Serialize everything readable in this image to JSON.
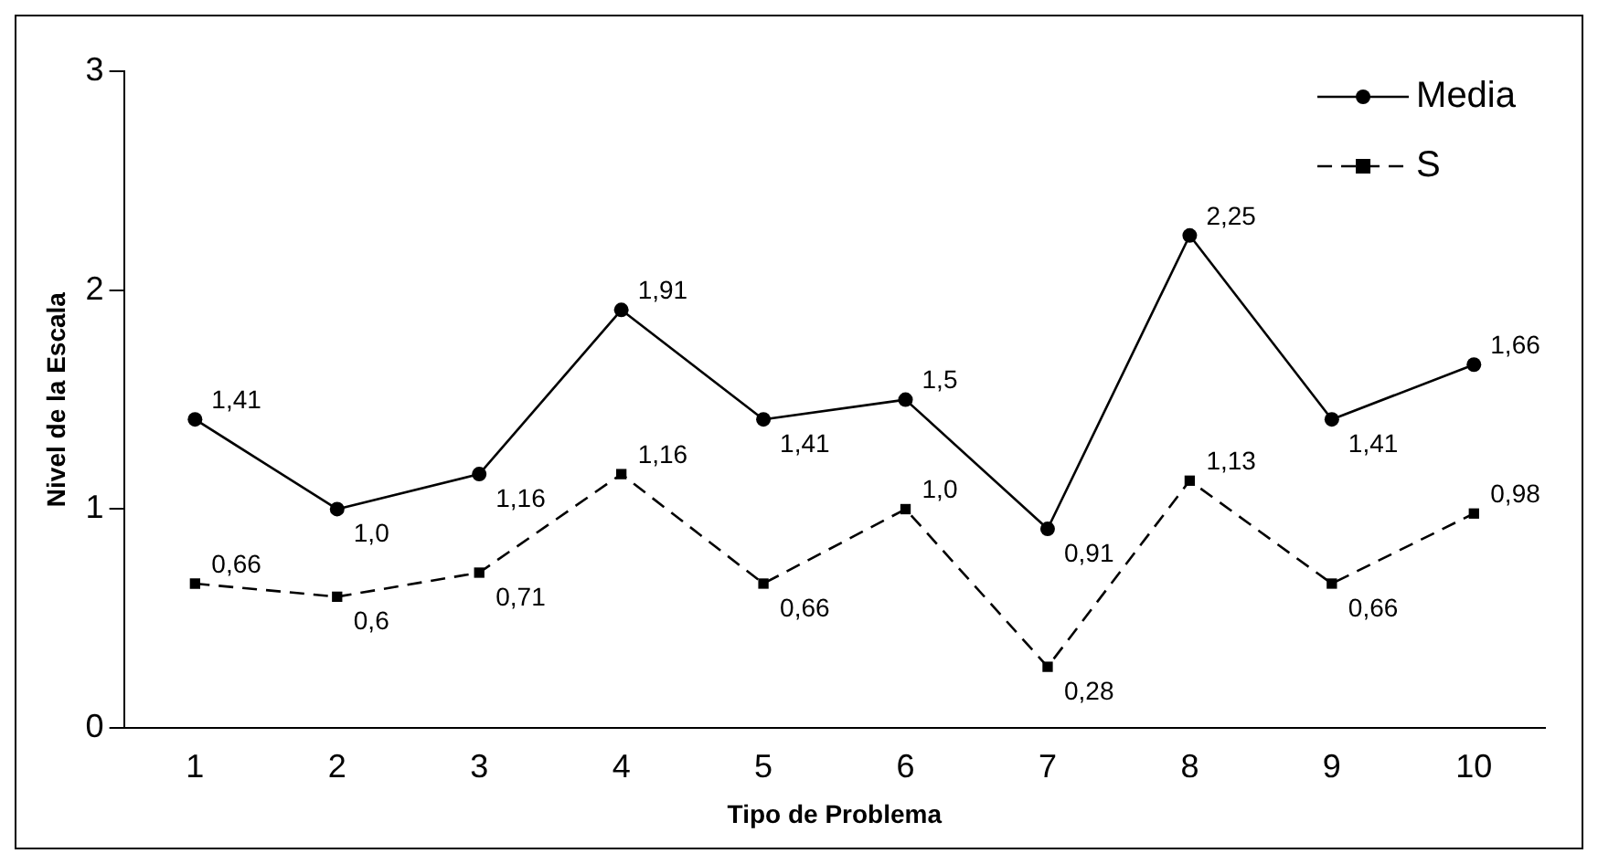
{
  "chart_data": {
    "type": "line",
    "xlabel": "Tipo de Problema",
    "ylabel": "Nivel de la Escala",
    "categories": [
      "1",
      "2",
      "3",
      "4",
      "5",
      "6",
      "7",
      "8",
      "9",
      "10"
    ],
    "series": [
      {
        "name": "Media",
        "color": "#000000",
        "marker": "circle",
        "line_style": "solid",
        "values": [
          1.41,
          1.0,
          1.16,
          1.91,
          1.41,
          1.5,
          0.91,
          2.25,
          1.41,
          1.66
        ],
        "value_labels": [
          "1,41",
          "1,0",
          "1,16",
          "1,91",
          "1,41",
          "1,5",
          "0,91",
          "2,25",
          "1,41",
          "1,66"
        ]
      },
      {
        "name": "S",
        "color": "#000000",
        "marker": "square",
        "line_style": "dashed",
        "values": [
          0.66,
          0.6,
          0.71,
          1.16,
          0.66,
          1.0,
          0.28,
          1.13,
          0.66,
          0.98
        ],
        "value_labels": [
          "0,66",
          "0,6",
          "0,71",
          "1,16",
          "0,66",
          "1,0",
          "0,28",
          "1,13",
          "0,66",
          "0,98"
        ]
      }
    ],
    "ylim": [
      0,
      3
    ],
    "yticks": [
      0,
      1,
      2,
      3
    ],
    "grid": false,
    "legend": "top right"
  }
}
